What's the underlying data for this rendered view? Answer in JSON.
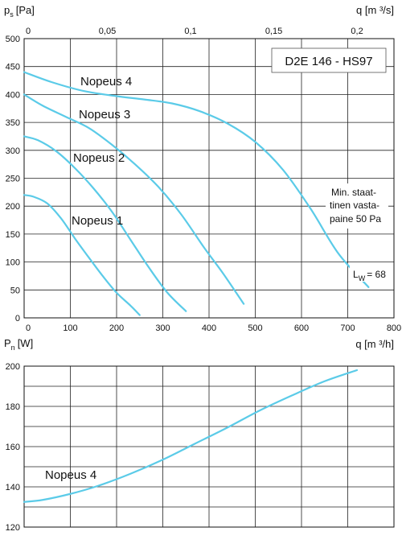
{
  "chart_data": [
    {
      "type": "line",
      "title": "D2E 146 - HS97",
      "ylabel": "p",
      "ylabel_sub": "s",
      "ylabel_unit": "[Pa]",
      "xlabel": "q [m ³/h]",
      "x2label": "q [m ³/s]",
      "xlim": [
        0,
        800
      ],
      "ylim": [
        0,
        500
      ],
      "x2lim": [
        0,
        0.2222
      ],
      "x_ticks": [
        "0",
        "100",
        "200",
        "300",
        "400",
        "500",
        "600",
        "700",
        "800"
      ],
      "y_ticks": [
        "0",
        "50",
        "100",
        "150",
        "200",
        "250",
        "300",
        "350",
        "400",
        "450",
        "500"
      ],
      "x2_ticks": [
        {
          "value": 0,
          "label": "0"
        },
        {
          "value": 0.05,
          "label": "0,05"
        },
        {
          "value": 0.1,
          "label": "0,1"
        },
        {
          "value": 0.15,
          "label": "0,15"
        },
        {
          "value": 0.2,
          "label": "0,2"
        }
      ],
      "grid": true,
      "curve_color": "#5bcbe8",
      "series": [
        {
          "name": "Nopeus 4",
          "x": [
            0,
            60,
            130,
            200,
            260,
            320,
            380,
            440,
            500,
            560,
            620,
            680,
            745
          ],
          "y": [
            440,
            422,
            406,
            397,
            391,
            384,
            370,
            348,
            315,
            265,
            195,
            115,
            55
          ]
        },
        {
          "name": "Nopeus 3",
          "x": [
            0,
            40,
            90,
            140,
            190,
            240,
            290,
            340,
            390,
            430,
            475
          ],
          "y": [
            400,
            380,
            360,
            340,
            310,
            275,
            235,
            185,
            125,
            80,
            25
          ]
        },
        {
          "name": "Nopeus 2",
          "x": [
            0,
            30,
            70,
            110,
            150,
            190,
            230,
            270,
            310,
            350
          ],
          "y": [
            325,
            318,
            298,
            268,
            232,
            190,
            140,
            90,
            45,
            12
          ]
        },
        {
          "name": "Nopeus 1",
          "x": [
            0,
            20,
            50,
            80,
            110,
            140,
            170,
            200,
            230,
            250
          ],
          "y": [
            220,
            217,
            205,
            178,
            142,
            108,
            75,
            45,
            22,
            5
          ]
        }
      ],
      "annotations": {
        "note_lines": [
          "Min. staat-",
          "tinen vasta-",
          "paine 50 Pa"
        ],
        "lw_main": "L",
        "lw_sub": "W",
        "lw_value": "= 68"
      }
    },
    {
      "type": "line",
      "ylabel": "P",
      "ylabel_sub": "n",
      "ylabel_unit": "[W]",
      "xlim": [
        0,
        800
      ],
      "ylim": [
        120,
        200
      ],
      "y_ticks": [
        "120",
        "140",
        "160",
        "180",
        "200"
      ],
      "grid": true,
      "series": [
        {
          "name": "Nopeus 4",
          "x": [
            0,
            40,
            100,
            160,
            230,
            300,
            370,
            440,
            510,
            580,
            650,
            720
          ],
          "y": [
            132.5,
            133.5,
            136.5,
            140.5,
            146.5,
            153.5,
            161.5,
            169.5,
            178,
            185.5,
            192.5,
            198
          ]
        }
      ]
    }
  ]
}
